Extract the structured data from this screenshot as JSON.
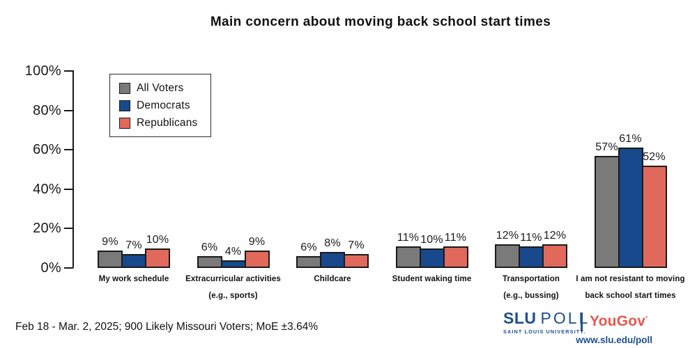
{
  "chart_data": {
    "type": "bar",
    "title": "Main concern about moving back school start times",
    "categories": [
      {
        "line1": "My work schedule",
        "line2": ""
      },
      {
        "line1": "Extracurricular activities",
        "line2": "(e.g., sports)"
      },
      {
        "line1": "Childcare",
        "line2": ""
      },
      {
        "line1": "Student waking time",
        "line2": ""
      },
      {
        "line1": "Transportation",
        "line2": "(e.g., bussing)"
      },
      {
        "line1": "I am not resistant to moving",
        "line2": "back school start times"
      }
    ],
    "series": [
      {
        "name": "All Voters",
        "color": "#7a7a7a",
        "values": [
          9,
          6,
          6,
          11,
          12,
          57
        ]
      },
      {
        "name": "Democrats",
        "color": "#17498c",
        "values": [
          7,
          4,
          8,
          10,
          11,
          61
        ]
      },
      {
        "name": "Republicans",
        "color": "#e0695c",
        "values": [
          10,
          9,
          7,
          11,
          12,
          52
        ]
      }
    ],
    "value_suffix": "%",
    "ylim": [
      0,
      100
    ],
    "yticks": [
      0,
      20,
      40,
      60,
      80,
      100
    ],
    "ytick_suffix": "%",
    "grid": false,
    "legend_position": "upper-left-inside"
  },
  "footer": {
    "note": "Feb 18 - Mar. 2, 2025; 900 Likely Missouri Voters; MoE ±3.64%",
    "slu": "SLU",
    "poll": "POLL",
    "slu_sub": "SAINT LOUIS UNIVERSITY.",
    "yougov": "YouGov",
    "yougov_mark": "°",
    "url": "www.slu.edu/poll",
    "slu_blue": "#1d4f91",
    "yougov_red": "#e4594c"
  }
}
